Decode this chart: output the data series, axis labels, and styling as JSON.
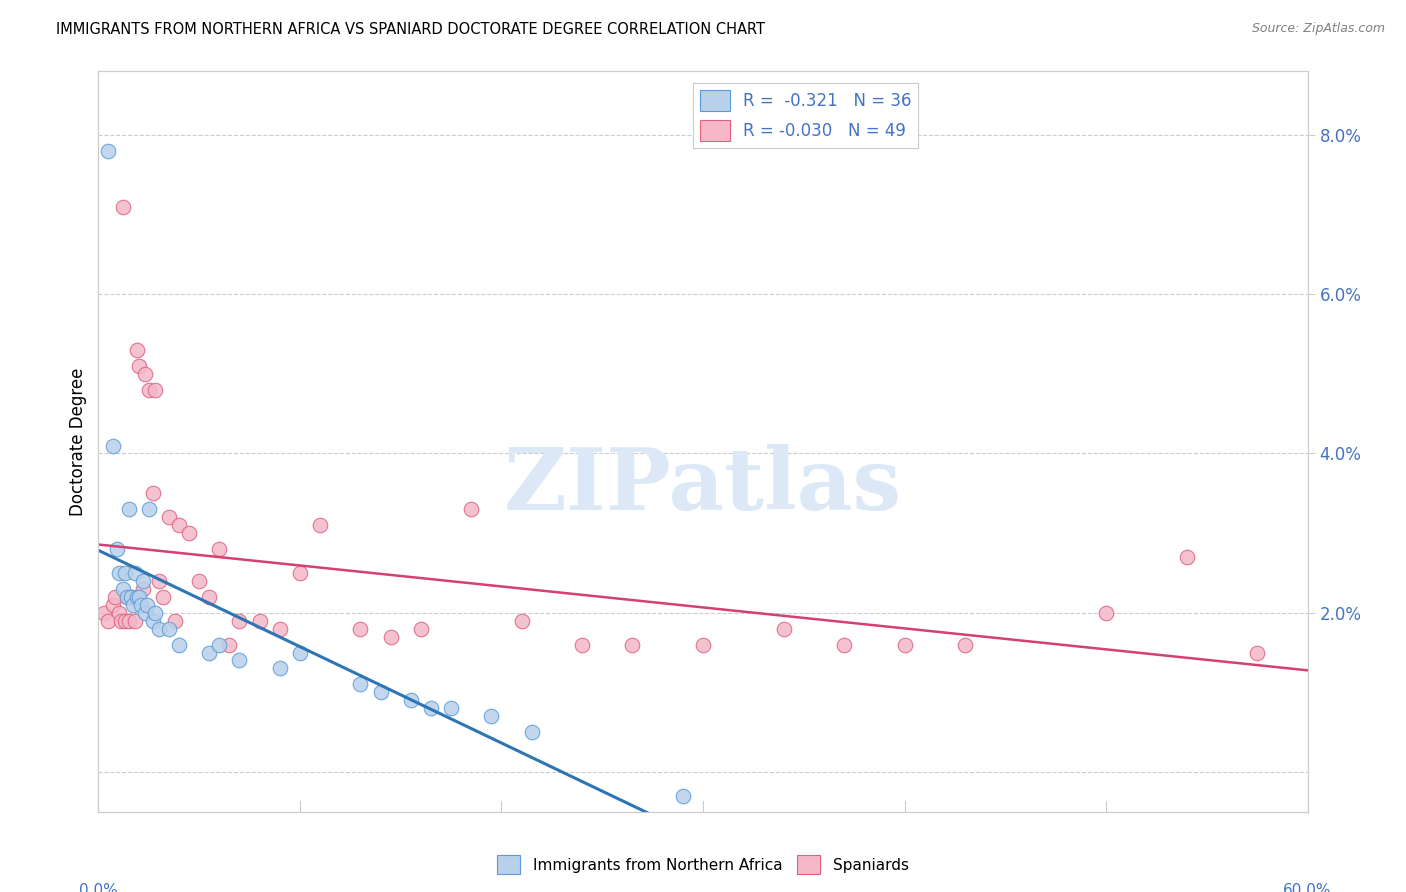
{
  "title": "IMMIGRANTS FROM NORTHERN AFRICA VS SPANIARD DOCTORATE DEGREE CORRELATION CHART",
  "source": "Source: ZipAtlas.com",
  "ylabel": "Doctorate Degree",
  "y_ticks": [
    0.0,
    0.02,
    0.04,
    0.06,
    0.08
  ],
  "y_tick_labels": [
    "",
    "2.0%",
    "4.0%",
    "6.0%",
    "8.0%"
  ],
  "xlim": [
    0.0,
    0.6
  ],
  "ylim": [
    -0.005,
    0.088
  ],
  "r_blue": -0.321,
  "n_blue": 36,
  "r_pink": -0.03,
  "n_pink": 49,
  "blue_scatter_color": "#b8d0ea",
  "blue_edge_color": "#5b9bd5",
  "pink_scatter_color": "#f4b8c8",
  "pink_edge_color": "#e06080",
  "blue_line_color": "#2e75b6",
  "pink_line_color": "#d44070",
  "watermark_text": "ZIPatlas",
  "watermark_color": "#dce8f5",
  "grid_color": "#cccccc",
  "right_tick_color": "#4472c4",
  "blue_points_x": [
    0.005,
    0.007,
    0.009,
    0.01,
    0.012,
    0.013,
    0.014,
    0.015,
    0.016,
    0.017,
    0.018,
    0.019,
    0.02,
    0.021,
    0.022,
    0.023,
    0.024,
    0.025,
    0.027,
    0.028,
    0.03,
    0.035,
    0.04,
    0.055,
    0.06,
    0.07,
    0.09,
    0.1,
    0.13,
    0.14,
    0.155,
    0.165,
    0.175,
    0.195,
    0.215,
    0.29
  ],
  "blue_points_y": [
    0.078,
    0.041,
    0.028,
    0.025,
    0.023,
    0.025,
    0.022,
    0.033,
    0.022,
    0.021,
    0.025,
    0.022,
    0.022,
    0.021,
    0.024,
    0.02,
    0.021,
    0.033,
    0.019,
    0.02,
    0.018,
    0.018,
    0.016,
    0.015,
    0.016,
    0.014,
    0.013,
    0.015,
    0.011,
    0.01,
    0.009,
    0.008,
    0.008,
    0.007,
    0.005,
    -0.003
  ],
  "pink_points_x": [
    0.003,
    0.005,
    0.007,
    0.008,
    0.01,
    0.011,
    0.012,
    0.013,
    0.014,
    0.015,
    0.016,
    0.018,
    0.019,
    0.02,
    0.022,
    0.023,
    0.025,
    0.027,
    0.028,
    0.03,
    0.032,
    0.035,
    0.038,
    0.04,
    0.045,
    0.05,
    0.055,
    0.06,
    0.065,
    0.07,
    0.08,
    0.09,
    0.1,
    0.11,
    0.13,
    0.145,
    0.16,
    0.185,
    0.21,
    0.24,
    0.265,
    0.3,
    0.34,
    0.37,
    0.4,
    0.43,
    0.5,
    0.54,
    0.575
  ],
  "pink_points_y": [
    0.02,
    0.019,
    0.021,
    0.022,
    0.02,
    0.019,
    0.071,
    0.019,
    0.022,
    0.019,
    0.022,
    0.019,
    0.053,
    0.051,
    0.023,
    0.05,
    0.048,
    0.035,
    0.048,
    0.024,
    0.022,
    0.032,
    0.019,
    0.031,
    0.03,
    0.024,
    0.022,
    0.028,
    0.016,
    0.019,
    0.019,
    0.018,
    0.025,
    0.031,
    0.018,
    0.017,
    0.018,
    0.033,
    0.019,
    0.016,
    0.016,
    0.016,
    0.018,
    0.016,
    0.016,
    0.016,
    0.02,
    0.027,
    0.015
  ]
}
